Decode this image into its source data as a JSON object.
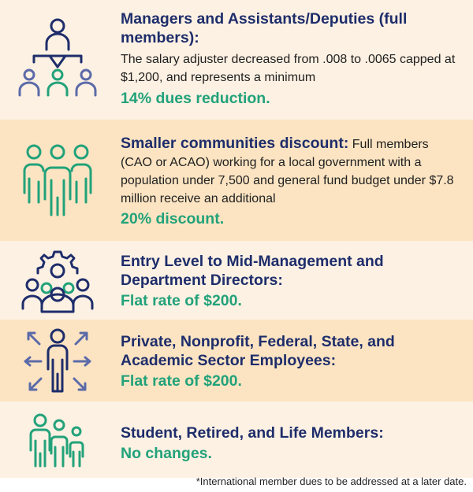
{
  "colors": {
    "light_bg": "#fdf1e3",
    "dark_bg": "#fce4c2",
    "navy": "#1e2d6b",
    "green": "#22a27a"
  },
  "rows": [
    {
      "icon": "org-chart-icon",
      "title": "Managers and Assistants/Deputies (full members):",
      "body": "The salary adjuster decreased from .008 to .0065 capped at $1,200, and represents a minimum",
      "highlight": "14% dues reduction."
    },
    {
      "icon": "group-icon",
      "title": "Smaller communities discount:",
      "body": "Full members (CAO or ACAO) working for a local government with a population under 7,500 and general fund budget under $7.8 million receive an additional",
      "highlight": "20% discount."
    },
    {
      "icon": "team-gear-icon",
      "title": "Entry Level to Mid-Management and Department Directors:",
      "highlight": "Flat rate of $200."
    },
    {
      "icon": "person-arrows-icon",
      "title": "Private, Nonprofit, Federal, State, and Academic Sector Employees:",
      "highlight": "Flat rate of $200."
    },
    {
      "icon": "family-icon",
      "title": "Student, Retired, and Life Members:",
      "highlight": "No changes."
    }
  ],
  "footnote": "*International member dues to be addressed at a later date."
}
